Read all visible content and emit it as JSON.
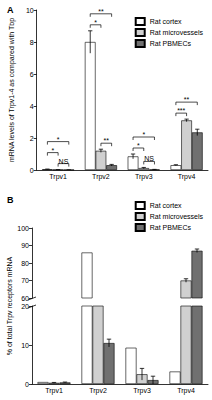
{
  "chart_data": [
    {
      "type": "bar",
      "title": "A",
      "ylabel": "mRNA levels of Trpv1-4 as compared with Tbp",
      "categories": [
        "Trpv1",
        "Trpv2",
        "Trpv3",
        "Trpv4"
      ],
      "series": [
        {
          "name": "Rat cortex",
          "color": "#ffffff",
          "values": [
            0.05,
            8.0,
            0.85,
            0.3
          ],
          "errors": [
            0.01,
            0.7,
            0.15,
            0.03
          ]
        },
        {
          "name": "Rat microvessels",
          "color": "#d0d0d0",
          "values": [
            0.02,
            1.2,
            0.12,
            3.1
          ],
          "errors": [
            0.005,
            0.1,
            0.04,
            0.08
          ]
        },
        {
          "name": "Rat PBMECs",
          "color": "#707070",
          "values": [
            0.01,
            0.3,
            0.03,
            2.35
          ],
          "errors": [
            0.003,
            0.05,
            0.01,
            0.2
          ]
        }
      ],
      "ylim": [
        0,
        10
      ],
      "yticks": [
        0,
        2,
        4,
        6,
        8,
        10
      ],
      "grid": false,
      "legend": "upper right",
      "annotations": [
        {
          "text": "NS",
          "category": "Trpv1",
          "from": "Rat microvessels",
          "to": "Rat PBMECs"
        },
        {
          "text": "*",
          "category": "Trpv1",
          "from": "Rat cortex",
          "to": "Rat microvessels"
        },
        {
          "text": "*",
          "category": "Trpv1",
          "from": "Rat cortex",
          "to": "Rat PBMECs"
        },
        {
          "text": "**",
          "category": "Trpv2",
          "from": "Rat microvessels",
          "to": "Rat PBMECs"
        },
        {
          "text": "*",
          "category": "Trpv2",
          "from": "Rat cortex",
          "to": "Rat microvessels"
        },
        {
          "text": "**",
          "category": "Trpv2",
          "from": "Rat cortex",
          "to": "Rat PBMECs"
        },
        {
          "text": "NS",
          "category": "Trpv3",
          "from": "Rat microvessels",
          "to": "Rat PBMECs"
        },
        {
          "text": "*",
          "category": "Trpv3",
          "from": "Rat cortex",
          "to": "Rat microvessels"
        },
        {
          "text": "*",
          "category": "Trpv3",
          "from": "Rat cortex",
          "to": "Rat PBMECs"
        },
        {
          "text": "***",
          "category": "Trpv4",
          "from": "Rat cortex",
          "to": "Rat microvessels"
        },
        {
          "text": "**",
          "category": "Trpv4",
          "from": "Rat cortex",
          "to": "Rat PBMECs"
        }
      ]
    },
    {
      "type": "bar",
      "title": "B",
      "ylabel": "% of total Trpv receptors mRNA",
      "categories": [
        "Trpv1",
        "Trpv2",
        "Trpv3",
        "Trpv4"
      ],
      "series": [
        {
          "name": "Rat cortex",
          "color": "#ffffff",
          "values": [
            0.5,
            86,
            9.3,
            3.2
          ],
          "errors": [
            0,
            0,
            0,
            0
          ]
        },
        {
          "name": "Rat microvessels",
          "color": "#d0d0d0",
          "values": [
            0.3,
            27,
            2.5,
            70
          ],
          "errors": [
            0.1,
            1,
            1.5,
            1
          ]
        },
        {
          "name": "Rat PBMECs",
          "color": "#707070",
          "values": [
            0.4,
            10.5,
            1,
            87
          ],
          "errors": [
            0.1,
            1,
            1,
            1
          ]
        }
      ],
      "ylim": [
        0,
        100
      ],
      "yticks": [
        0,
        10,
        20,
        60,
        70,
        80,
        90,
        100
      ],
      "y_break": [
        20,
        60
      ],
      "grid": false,
      "legend": "upper right"
    }
  ]
}
